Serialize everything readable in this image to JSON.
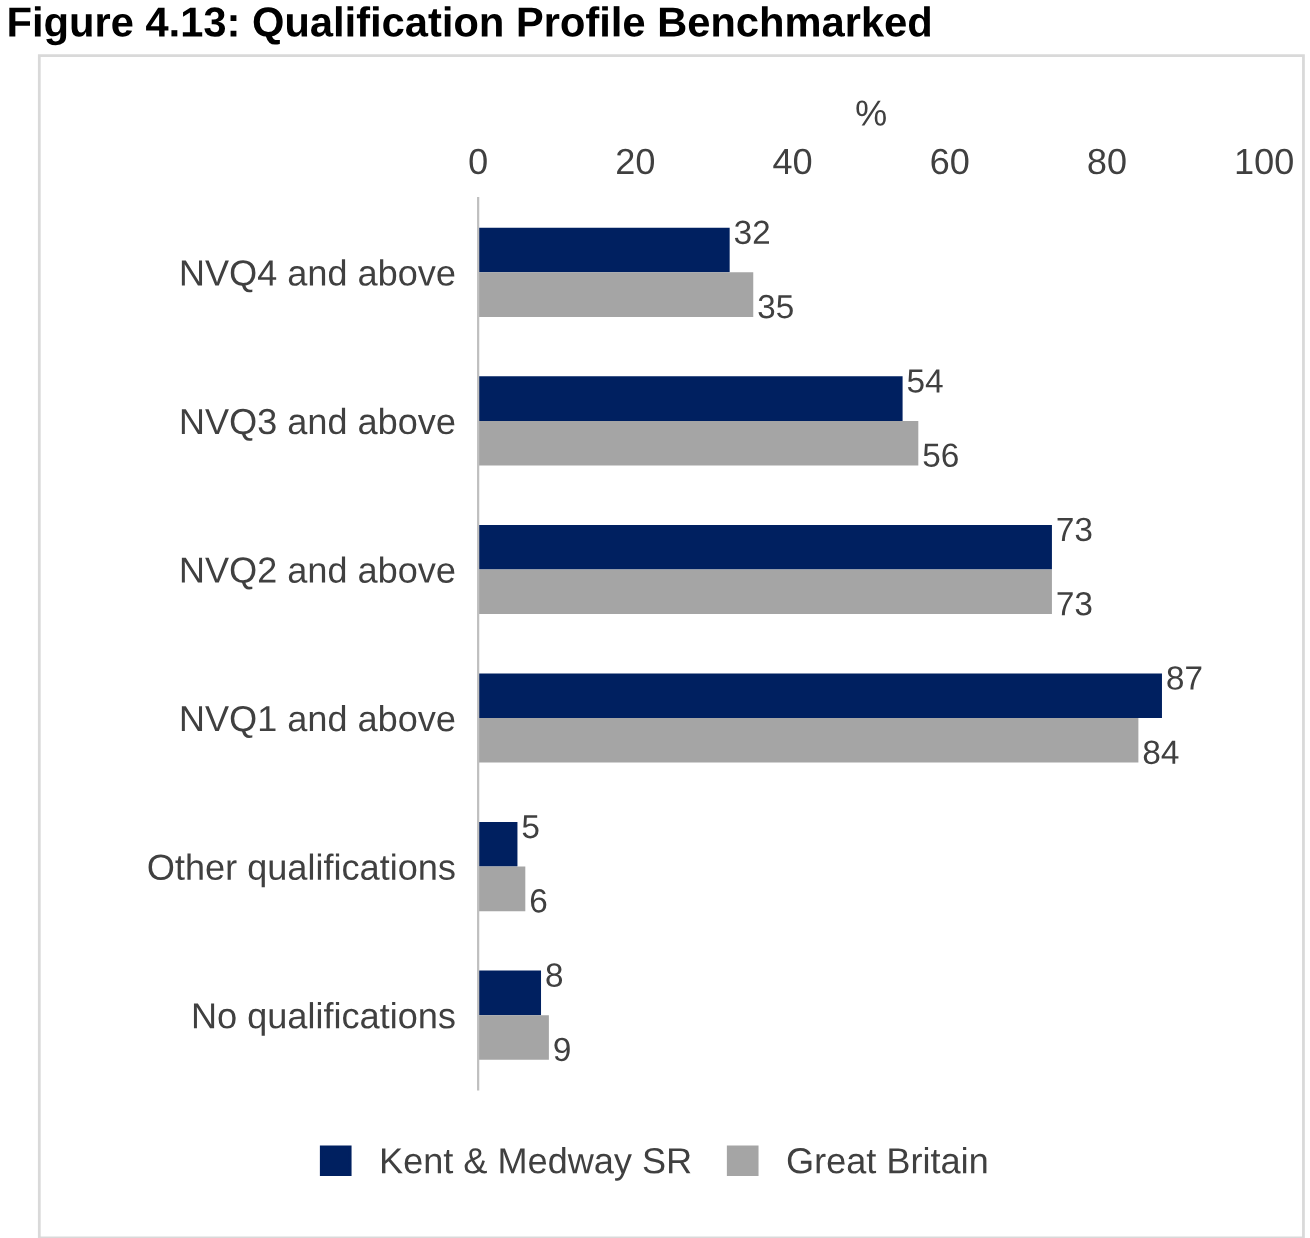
{
  "chart_data": {
    "type": "bar",
    "orientation": "horizontal",
    "title": "Figure 4.13: Qualification Profile Benchmarked",
    "xlabel": "%",
    "categories": [
      "NVQ4 and above",
      "NVQ3 and above",
      "NVQ2 and above",
      "NVQ1 and above",
      "Other qualifications",
      "No qualifications"
    ],
    "series": [
      {
        "name": "Kent & Medway SR",
        "color": "#002060",
        "values": [
          32,
          54,
          73,
          87,
          5,
          8
        ]
      },
      {
        "name": "Great Britain",
        "color": "#a5a5a5",
        "values": [
          35,
          56,
          73,
          84,
          6,
          9
        ]
      }
    ],
    "xlim": [
      0,
      100
    ],
    "xticks": [
      0,
      20,
      40,
      60,
      80,
      100
    ],
    "grid": false,
    "legend": "bottom",
    "data_labels": true
  }
}
